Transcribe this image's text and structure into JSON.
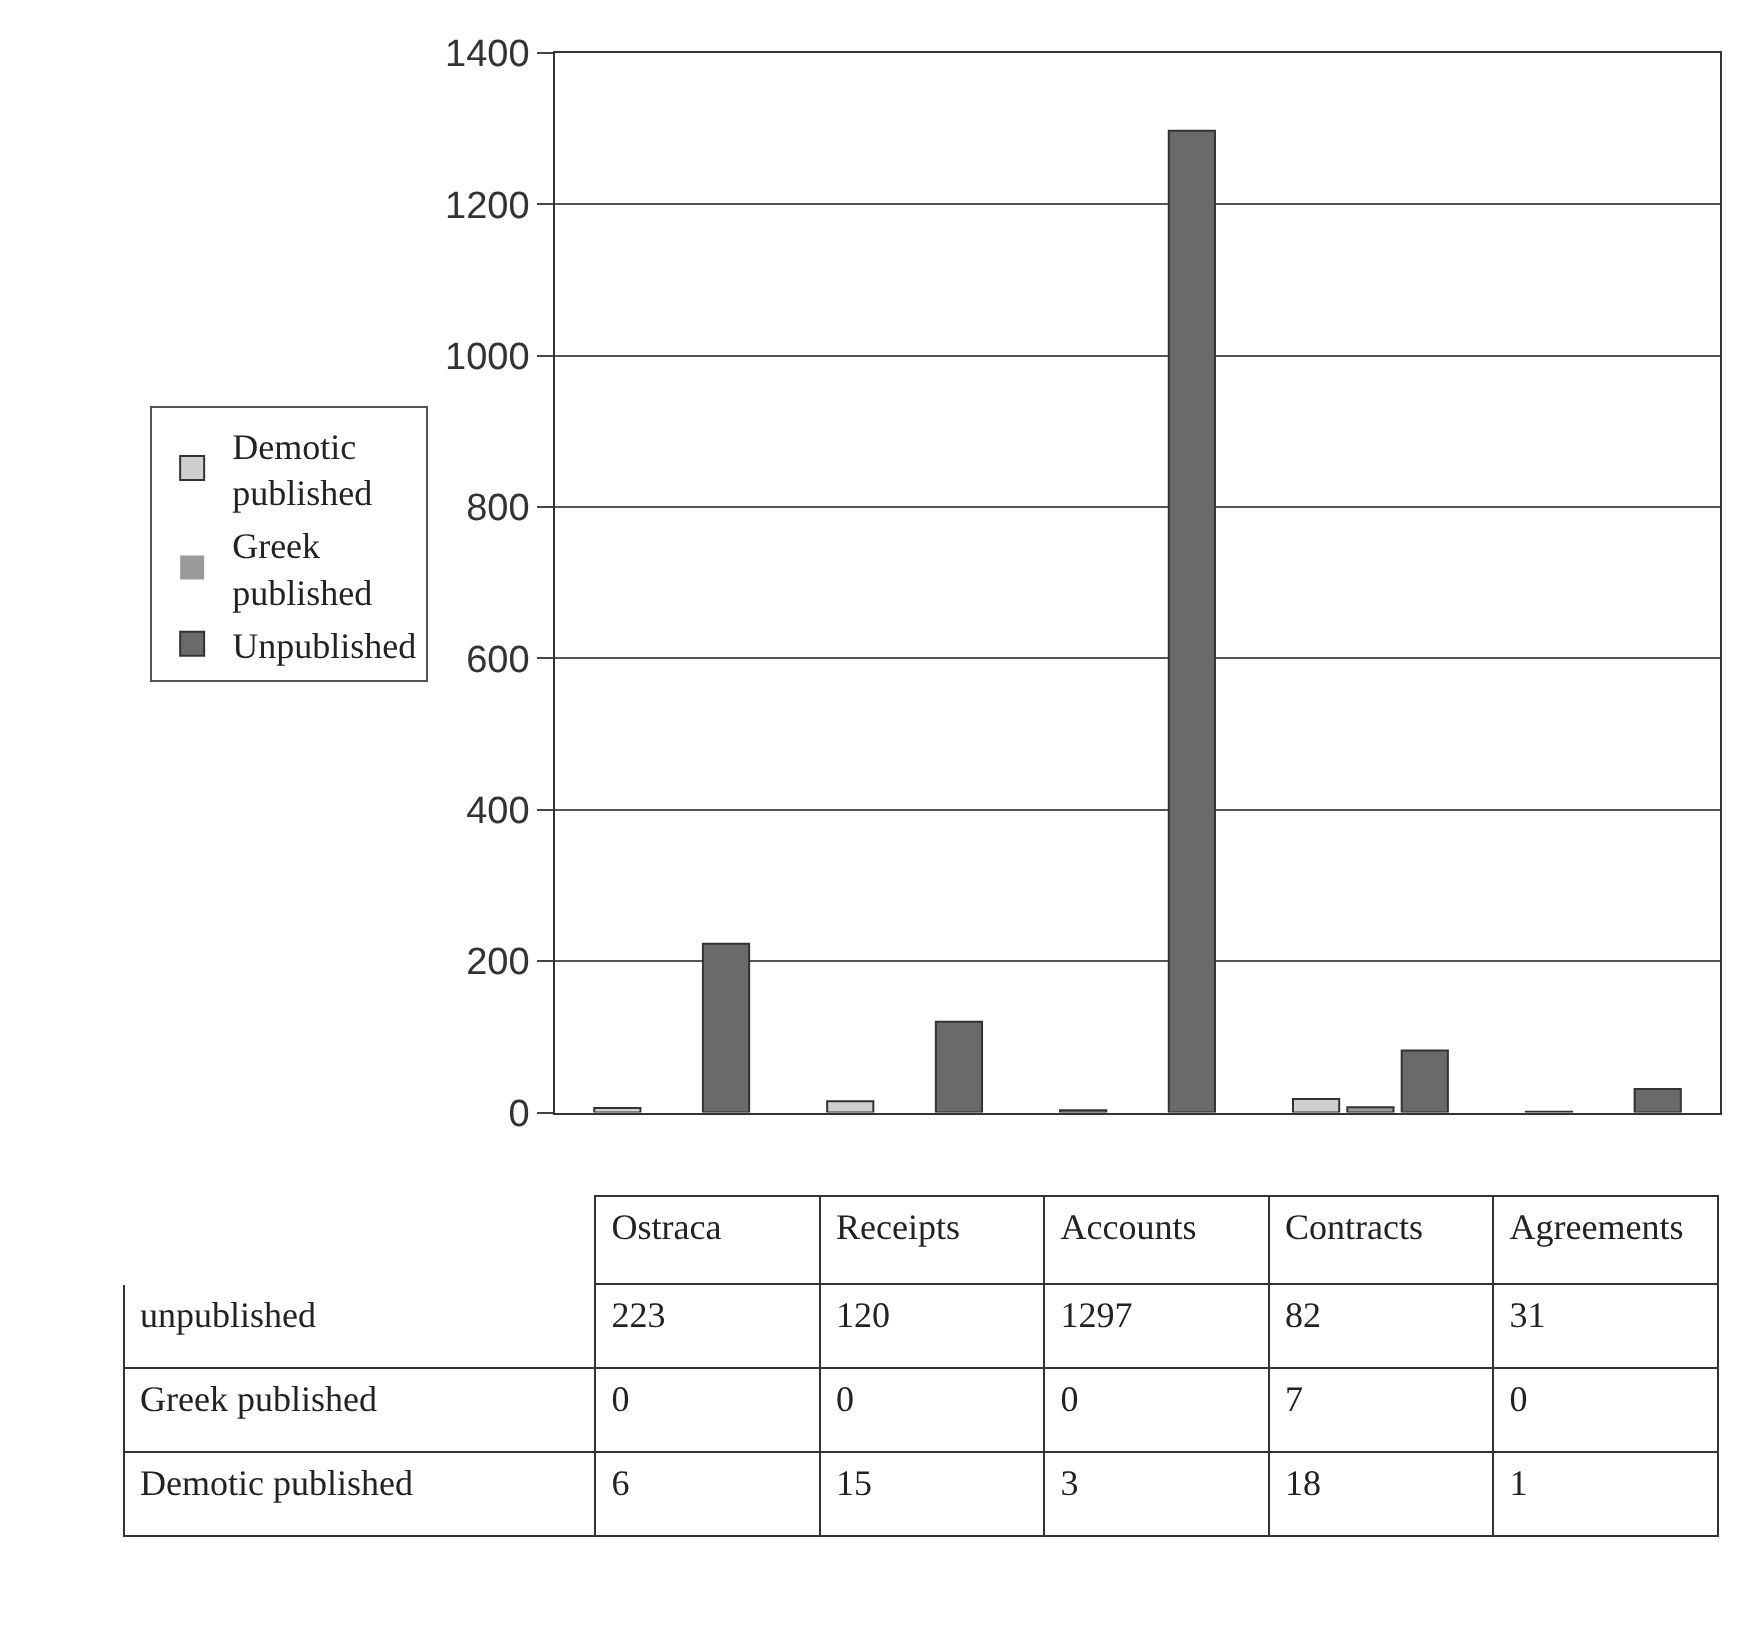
{
  "chart_data": {
    "type": "bar",
    "categories": [
      "Ostraca",
      "Receipts",
      "Accounts",
      "Contracts",
      "Agreements"
    ],
    "series": [
      {
        "name": "Demotic published",
        "color": "#cfcfcf",
        "values": [
          6,
          15,
          3,
          18,
          1
        ]
      },
      {
        "name": "Greek published",
        "color": "#9a9a9a",
        "values": [
          0,
          0,
          0,
          7,
          0
        ]
      },
      {
        "name": "Unpublished",
        "color": "#6a6a6a",
        "values": [
          223,
          120,
          1297,
          82,
          31
        ]
      }
    ],
    "annotations": [
      "unpublished",
      "Greek published",
      "Demotic published"
    ],
    "ylim": [
      0,
      1400
    ],
    "yticks": [
      0,
      200,
      400,
      600,
      800,
      1000,
      1200,
      1400
    ],
    "grid": "y",
    "legend": "left",
    "data_labels": true
  }
}
